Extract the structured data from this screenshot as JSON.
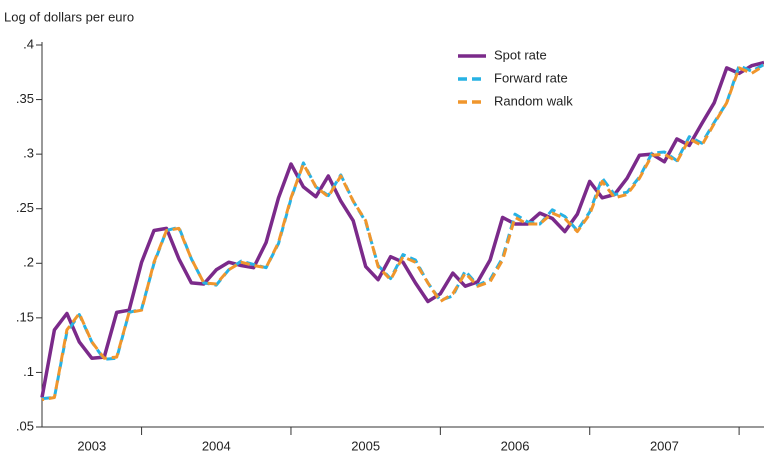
{
  "chart_data": {
    "type": "line",
    "y_label": "Log of dollars per euro",
    "categories": [
      "2003",
      null,
      null,
      null,
      null,
      null,
      null,
      null,
      "2004",
      null,
      null,
      null,
      null,
      null,
      null,
      null,
      null,
      null,
      null,
      null,
      "2005",
      null,
      null,
      null,
      null,
      null,
      null,
      null,
      null,
      null,
      null,
      null,
      "2006",
      null,
      null,
      null,
      null,
      null,
      null,
      null,
      null,
      null,
      null,
      null,
      "2007",
      null,
      null,
      null,
      null,
      null,
      null,
      null,
      null,
      null,
      null,
      null,
      null,
      null,
      null
    ],
    "series": [
      {
        "name": "Spot rate",
        "color": "#7b2a8a",
        "dash": false,
        "values": [
          0.077,
          0.139,
          0.154,
          0.128,
          0.113,
          0.114,
          0.155,
          0.157,
          0.201,
          0.23,
          0.232,
          0.204,
          0.182,
          0.181,
          0.194,
          0.201,
          0.198,
          0.196,
          0.219,
          0.26,
          0.291,
          0.27,
          0.261,
          0.28,
          0.257,
          0.239,
          0.197,
          0.185,
          0.206,
          0.201,
          0.182,
          0.165,
          0.172,
          0.191,
          0.179,
          0.183,
          0.203,
          0.242,
          0.236,
          0.236,
          0.246,
          0.241,
          0.229,
          0.245,
          0.275,
          0.26,
          0.263,
          0.278,
          0.299,
          0.3,
          0.293,
          0.314,
          0.308,
          0.328,
          0.347,
          0.379,
          0.374,
          0.381,
          0.384
        ]
      },
      {
        "name": "Forward rate",
        "color": "#27b2e4",
        "dash": true,
        "values": [
          0.076,
          0.077,
          0.137,
          0.153,
          0.128,
          0.112,
          0.113,
          0.155,
          0.158,
          0.2,
          0.23,
          0.233,
          0.204,
          0.182,
          0.18,
          0.194,
          0.202,
          0.199,
          0.196,
          0.218,
          0.259,
          0.292,
          0.27,
          0.262,
          0.281,
          0.257,
          0.238,
          0.198,
          0.186,
          0.208,
          0.203,
          0.182,
          0.166,
          0.17,
          0.193,
          0.18,
          0.185,
          0.205,
          0.245,
          0.238,
          0.236,
          0.249,
          0.243,
          0.23,
          0.247,
          0.278,
          0.263,
          0.265,
          0.279,
          0.301,
          0.302,
          0.294,
          0.316,
          0.31,
          0.329,
          0.347,
          0.381,
          0.376,
          0.382
        ]
      },
      {
        "name": "Random walk",
        "color": "#f0962c",
        "dash": true,
        "values": [
          0.075,
          0.077,
          0.139,
          0.154,
          0.128,
          0.113,
          0.114,
          0.155,
          0.157,
          0.201,
          0.23,
          0.232,
          0.204,
          0.182,
          0.181,
          0.194,
          0.201,
          0.198,
          0.196,
          0.219,
          0.26,
          0.291,
          0.27,
          0.261,
          0.28,
          0.257,
          0.239,
          0.197,
          0.185,
          0.206,
          0.201,
          0.182,
          0.165,
          0.172,
          0.191,
          0.179,
          0.183,
          0.203,
          0.242,
          0.236,
          0.236,
          0.246,
          0.241,
          0.229,
          0.245,
          0.275,
          0.26,
          0.263,
          0.278,
          0.299,
          0.3,
          0.293,
          0.314,
          0.308,
          0.328,
          0.347,
          0.379,
          0.374,
          0.381
        ]
      }
    ],
    "ylim": [
      0.05,
      0.4
    ],
    "yticks": [
      {
        "value": 0.05,
        "label": ".05"
      },
      {
        "value": 0.1,
        "label": ".1"
      },
      {
        "value": 0.15,
        "label": ".15"
      },
      {
        "value": 0.2,
        "label": ".2"
      },
      {
        "value": 0.25,
        "label": ".25"
      },
      {
        "value": 0.3,
        "label": ".3"
      },
      {
        "value": 0.35,
        "label": ".35"
      },
      {
        "value": 0.4,
        "label": ".4"
      }
    ],
    "grid": false,
    "legend": "top-right"
  }
}
